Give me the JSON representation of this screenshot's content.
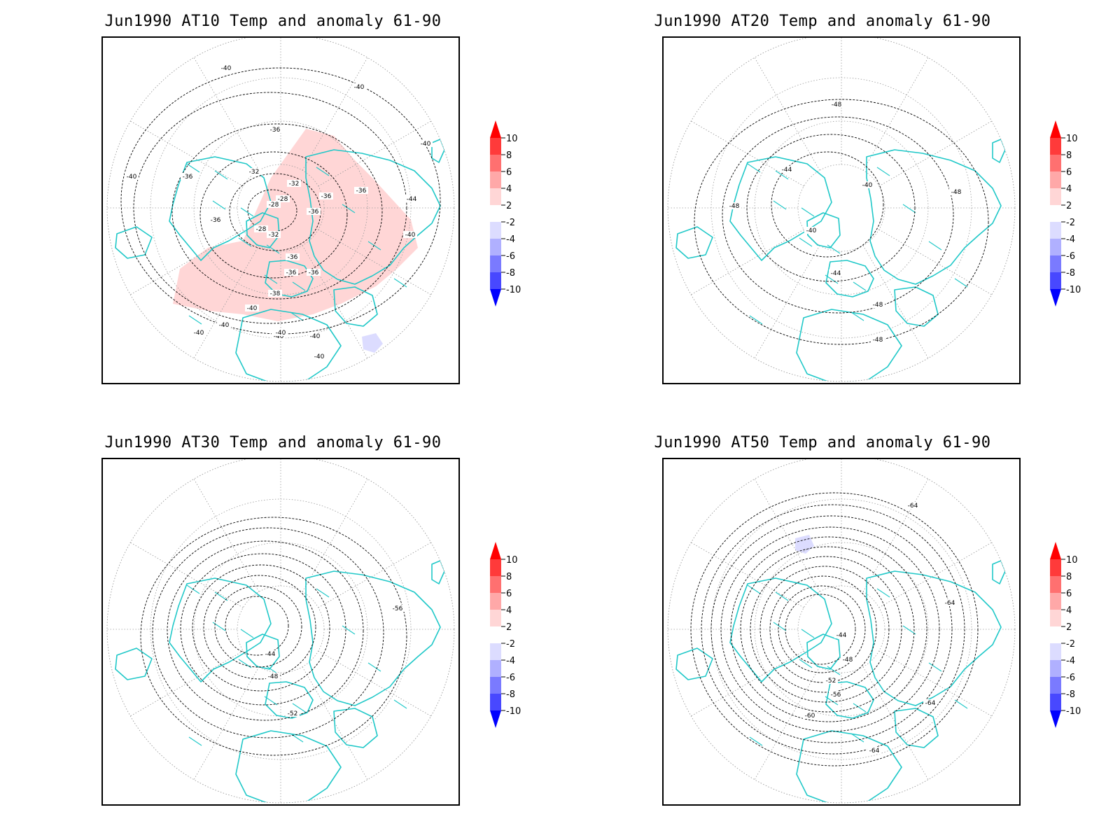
{
  "figure": {
    "panels": [
      {
        "id": "at10",
        "title": "Jun1990 AT10 Temp and anomaly 61-90",
        "contour_labels": [
          "-40",
          "-40",
          "-40",
          "-40",
          "-36",
          "-36",
          "-36",
          "-36",
          "-36",
          "-36",
          "-32",
          "-32",
          "-32",
          "-28",
          "-28",
          "-28",
          "-36",
          "-36",
          "-36",
          "-38",
          "-40",
          "-40",
          "-40",
          "-40",
          "-44",
          "-40",
          "-40",
          "-40",
          "-40"
        ],
        "anomaly_regions": [
          {
            "sign": "positive",
            "value": 3
          },
          {
            "sign": "negative",
            "value": -3
          }
        ]
      },
      {
        "id": "at20",
        "title": "Jun1990 AT20 Temp and anomaly 61-90",
        "contour_labels": [
          "-48",
          "-44",
          "-40",
          "-40",
          "-44",
          "-48",
          "-48",
          "-48",
          "-48"
        ],
        "anomaly_regions": []
      },
      {
        "id": "at30",
        "title": "Jun1990 AT30 Temp and anomaly 61-90",
        "contour_labels": [
          "-44",
          "-48",
          "-52",
          "-56"
        ],
        "anomaly_regions": []
      },
      {
        "id": "at50",
        "title": "Jun1990 AT50 Temp and anomaly 61-90",
        "contour_labels": [
          "-64",
          "-64",
          "-44",
          "-48",
          "-52",
          "-56",
          "-60",
          "-64",
          "-64"
        ],
        "anomaly_regions": [
          {
            "sign": "negative",
            "value": -3
          }
        ]
      }
    ],
    "colorbar": {
      "ticks": [
        "10",
        "8",
        "6",
        "4",
        "2",
        "-2",
        "-4",
        "-6",
        "-8",
        "-10"
      ],
      "colors": [
        "#ff0000",
        "#ff3a3a",
        "#ff7070",
        "#ffa8a8",
        "#ffd6d6",
        "#ffffff",
        "#dcdcff",
        "#b0b0ff",
        "#7a7aff",
        "#4848ff",
        "#0000ff"
      ]
    },
    "colors": {
      "coastline": "#20c8c8",
      "contour": "#000000",
      "grid": "#9a9a9a"
    }
  }
}
